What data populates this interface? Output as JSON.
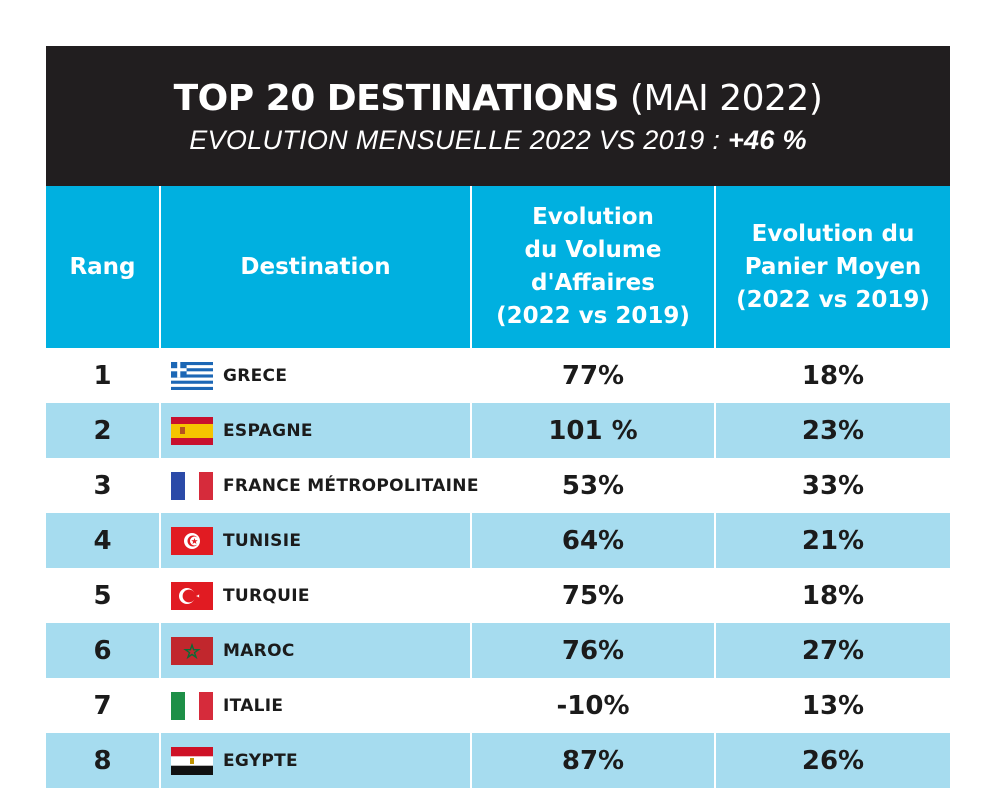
{
  "header": {
    "title_bold": "TOP 20 DESTINATIONS",
    "title_light": "(MAI 2022)",
    "subtitle_prefix": "EVOLUTION MENSUELLE 2022 VS 2019 :",
    "subtitle_value": "+46 %"
  },
  "columns": {
    "rank": "Rang",
    "destination": "Destination",
    "volume_l1": "Evolution",
    "volume_l2": "du Volume",
    "volume_l3": "d'Affaires",
    "volume_l4": "(2022 vs 2019)",
    "basket_l1": "Evolution du",
    "basket_l2": "Panier Moyen",
    "basket_l3": "(2022 vs 2019)"
  },
  "rows": [
    {
      "rank": "1",
      "flag": "greece-flag-icon",
      "destination": "GRECE",
      "volume": "77%",
      "basket": "18%"
    },
    {
      "rank": "2",
      "flag": "spain-flag-icon",
      "destination": "ESPAGNE",
      "volume": "101 %",
      "basket": "23%"
    },
    {
      "rank": "3",
      "flag": "france-flag-icon",
      "destination": "FRANCE MÉTROPOLITAINE",
      "volume": "53%",
      "basket": "33%"
    },
    {
      "rank": "4",
      "flag": "tunisia-flag-icon",
      "destination": "TUNISIE",
      "volume": "64%",
      "basket": "21%"
    },
    {
      "rank": "5",
      "flag": "turkey-flag-icon",
      "destination": "TURQUIE",
      "volume": "75%",
      "basket": "18%"
    },
    {
      "rank": "6",
      "flag": "morocco-flag-icon",
      "destination": "MAROC",
      "volume": "76%",
      "basket": "27%"
    },
    {
      "rank": "7",
      "flag": "italy-flag-icon",
      "destination": "ITALIE",
      "volume": "-10%",
      "basket": "13%"
    },
    {
      "rank": "8",
      "flag": "egypt-flag-icon",
      "destination": "EGYPTE",
      "volume": "87%",
      "basket": "26%"
    }
  ],
  "colors": {
    "banner": "#211e1f",
    "header": "#00b0e0",
    "stripe": "#a6dcef"
  }
}
